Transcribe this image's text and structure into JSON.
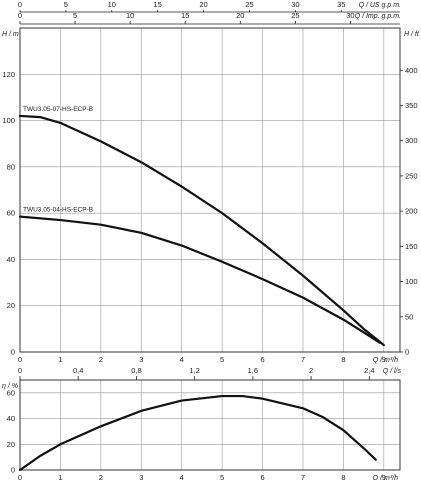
{
  "chart_data": [
    {
      "type": "line",
      "panel": "head",
      "x_label": "Q / m³/h",
      "y_label": "H / m",
      "y2_label": "H / ft",
      "xlim": [
        0,
        9.4
      ],
      "ylim": [
        0,
        140
      ],
      "y2lim": [
        0,
        460
      ],
      "x_ticks": [
        "0",
        "1",
        "2",
        "3",
        "4",
        "5",
        "6",
        "7",
        "8",
        "9"
      ],
      "y_ticks": [
        "0",
        "20",
        "40",
        "60",
        "80",
        "100",
        "120"
      ],
      "y2_ticks": [
        "0",
        "50",
        "100",
        "150",
        "200",
        "250",
        "300",
        "350",
        "400"
      ],
      "top_axes": [
        {
          "label": "Q / US g.p.m.",
          "ticks": [
            "0",
            "5",
            "10",
            "15",
            "20",
            "25",
            "30",
            "35"
          ],
          "xlim": [
            0,
            41.4
          ]
        },
        {
          "label": "Q / Imp. g.p.m.",
          "ticks": [
            "0",
            "5",
            "10",
            "15",
            "20",
            "25",
            "30"
          ],
          "xlim": [
            0,
            34.5
          ]
        }
      ],
      "grid": true,
      "series": [
        {
          "name": "TWU3.05-07-HS-ECP-B",
          "x": [
            0,
            0.5,
            1,
            2,
            3,
            4,
            5,
            6,
            7,
            8,
            8.5,
            9
          ],
          "y": [
            102,
            101.5,
            99,
            91,
            82,
            71.5,
            60,
            47,
            33,
            18,
            10,
            3
          ]
        },
        {
          "name": "TWU3.05-04-HS-ECP-B",
          "x": [
            0,
            1,
            2,
            3,
            4,
            5,
            6,
            7,
            8,
            8.5,
            8.9
          ],
          "y": [
            58.5,
            57,
            55,
            51.5,
            46,
            39,
            31.5,
            23.5,
            14,
            8.5,
            4
          ]
        }
      ]
    },
    {
      "type": "line",
      "panel": "efficiency",
      "x_label": "Q / m³/h",
      "y_label": "η / %",
      "xlim": [
        0,
        9.4
      ],
      "ylim": [
        0,
        70
      ],
      "x_ticks": [
        "0",
        "1",
        "2",
        "3",
        "4",
        "5",
        "6",
        "7",
        "8",
        "9"
      ],
      "y_ticks": [
        "0",
        "20",
        "40",
        "60"
      ],
      "top_axes": [
        {
          "label": "Q / l/s",
          "ticks": [
            "0",
            "0,4",
            "0,8",
            "1,2",
            "1,6",
            "2",
            "2,4"
          ],
          "xlim": [
            0,
            2.611
          ]
        }
      ],
      "grid": true,
      "series": [
        {
          "name": "",
          "x": [
            0,
            0.5,
            1,
            2,
            3,
            4,
            5,
            5.5,
            6,
            7,
            7.5,
            8,
            8.5,
            8.8
          ],
          "y": [
            0,
            11,
            20,
            34,
            46,
            54,
            57.5,
            57.5,
            55.5,
            48,
            41,
            31,
            17,
            8
          ]
        }
      ]
    }
  ]
}
